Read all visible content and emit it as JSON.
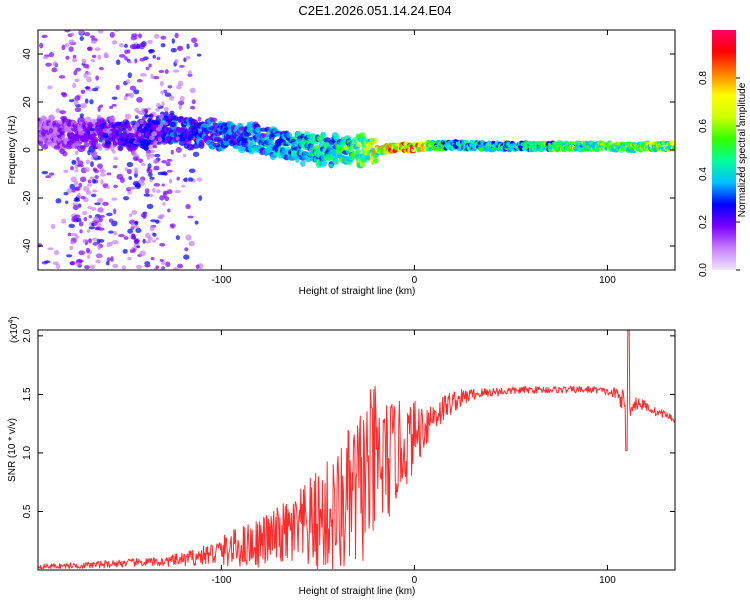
{
  "title": "C2E1.2026.051.14.24.E04",
  "chart_data": [
    {
      "type": "heatmap",
      "xlabel": "Height of straight line (km)",
      "ylabel": "Frequency (Hz)",
      "xlim": [
        -195,
        135
      ],
      "ylim": [
        -50,
        50
      ],
      "x_ticks": [
        -100,
        0,
        100
      ],
      "x_tick_labels": [
        "-100",
        "0",
        "100"
      ],
      "y_ticks": [
        40,
        20,
        0,
        -20,
        -40
      ],
      "y_tick_labels": [
        "40",
        "20",
        "0",
        "-20",
        "-40"
      ],
      "colorbar": {
        "label": "Normalized spectral amplitude",
        "range": [
          0,
          1
        ],
        "ticks": [
          0.0,
          0.2,
          0.4,
          0.6,
          0.8
        ],
        "tick_labels": [
          "0.0",
          "0.2",
          "0.4",
          "0.6",
          "0.8"
        ],
        "colors": [
          "#f0e6ff",
          "#c77dff",
          "#7b00ff",
          "#0000ff",
          "#00bfff",
          "#00ff99",
          "#33ff00",
          "#ccff00",
          "#ffff00",
          "#ff8000",
          "#ff0000",
          "#ff0066"
        ]
      },
      "ridge": {
        "x": [
          -195,
          -170,
          -140,
          -130,
          -110,
          -90,
          -70,
          -55,
          -40,
          -30,
          -20,
          -10,
          0,
          10,
          20,
          40,
          60,
          80,
          100,
          110,
          120,
          135
        ],
        "y": [
          7,
          7,
          6,
          9,
          7,
          5,
          3,
          0,
          0,
          0,
          0,
          1,
          1,
          2,
          2,
          1.5,
          1.5,
          1.5,
          1.5,
          1,
          1.5,
          1.5
        ],
        "amplitude": [
          0.15,
          0.2,
          0.25,
          0.3,
          0.3,
          0.35,
          0.4,
          0.45,
          0.5,
          0.55,
          0.7,
          0.85,
          0.9,
          0.55,
          0.45,
          0.45,
          0.5,
          0.55,
          0.6,
          0.55,
          0.6,
          0.65
        ]
      },
      "noisy_region_x": [
        -195,
        -110
      ]
    },
    {
      "type": "line",
      "xlabel": "Height of straight line (km)",
      "ylabel": "SNR (10 * v/v)",
      "y_multiplier_label": "(x10",
      "y_multiplier_exp": "4",
      "y_multiplier_close": ")",
      "xlim": [
        -195,
        135
      ],
      "ylim": [
        0,
        2.05
      ],
      "x_ticks": [
        -100,
        0,
        100
      ],
      "x_tick_labels": [
        "-100",
        "0",
        "100"
      ],
      "y_ticks": [
        0.5,
        1.0,
        1.5,
        2.0
      ],
      "y_tick_labels": [
        "0.5",
        "1.0",
        "1.5",
        "2.0"
      ],
      "color": "#ff2a2a",
      "series": [
        {
          "name": "SNR",
          "x": [
            -195,
            -170,
            -150,
            -130,
            -120,
            -110,
            -100,
            -90,
            -80,
            -70,
            -60,
            -50,
            -40,
            -35,
            -30,
            -25,
            -20,
            -15,
            -10,
            -5,
            0,
            10,
            20,
            30,
            40,
            50,
            60,
            70,
            80,
            90,
            95,
            100,
            105,
            108,
            110,
            112,
            115,
            120,
            125,
            130,
            135
          ],
          "y": [
            0.03,
            0.04,
            0.06,
            0.07,
            0.09,
            0.12,
            0.16,
            0.2,
            0.24,
            0.3,
            0.33,
            0.42,
            0.48,
            0.56,
            0.65,
            0.8,
            0.9,
            0.9,
            1.0,
            1.06,
            1.15,
            1.32,
            1.44,
            1.5,
            1.52,
            1.53,
            1.54,
            1.54,
            1.54,
            1.54,
            1.54,
            1.52,
            1.5,
            1.45,
            1.45,
            1.4,
            1.43,
            1.4,
            1.35,
            1.33,
            1.28
          ]
        }
      ],
      "noise_amplitude": {
        "x": [
          -195,
          -130,
          -110,
          -90,
          -70,
          -50,
          -40,
          -30,
          -20,
          -10,
          0,
          10,
          20,
          30,
          40,
          60,
          80,
          100,
          110,
          120,
          135
        ],
        "y": [
          0.02,
          0.04,
          0.08,
          0.18,
          0.25,
          0.45,
          0.55,
          0.7,
          0.7,
          0.45,
          0.3,
          0.15,
          0.1,
          0.05,
          0.04,
          0.03,
          0.03,
          0.03,
          0.1,
          0.04,
          0.03
        ]
      },
      "spike": {
        "x": 111,
        "y_max": 2.05,
        "y_min": 1.02
      }
    }
  ]
}
